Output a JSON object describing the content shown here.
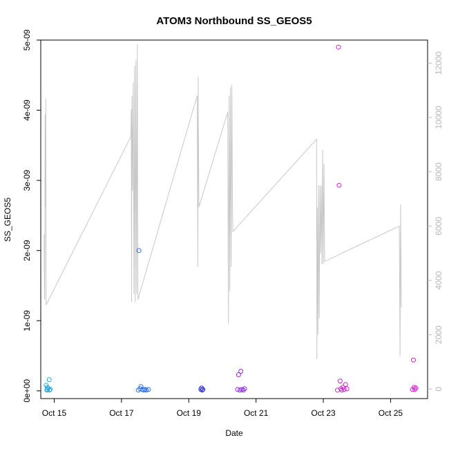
{
  "chart_data": {
    "type": "scatter",
    "title": "ATOM3 Northbound SS_GEOS5",
    "xlabel": "Date",
    "ylabel": "SS_GEOS5",
    "x_ticks": [
      "Oct 15",
      "Oct 17",
      "Oct 19",
      "Oct 21",
      "Oct 23",
      "Oct 25"
    ],
    "y_ticks": [
      "0e+00",
      "1e-09",
      "2e-09",
      "3e-09",
      "4e-09",
      "5e-09"
    ],
    "y2_ticks": [
      "0",
      "2000",
      "4000",
      "6000",
      "8000",
      "10000",
      "12000"
    ],
    "xlim": [
      14.6,
      26.1
    ],
    "ylim": [
      -1.1e-10,
      5e-09
    ],
    "y2lim": [
      -350,
      12850
    ],
    "grid": false,
    "points": [
      {
        "x": 14.76,
        "y": 8e-11,
        "color": "#29a8e0"
      },
      {
        "x": 14.79,
        "y": 5e-11,
        "color": "#29a8e0"
      },
      {
        "x": 14.8,
        "y": 2e-11,
        "color": "#29a8e0"
      },
      {
        "x": 14.82,
        "y": 4e-11,
        "color": "#29a8e0"
      },
      {
        "x": 14.85,
        "y": 1.6e-10,
        "color": "#29a8e0"
      },
      {
        "x": 14.86,
        "y": 1e-11,
        "color": "#29a8e0"
      },
      {
        "x": 14.88,
        "y": 2e-11,
        "color": "#29a8e0"
      },
      {
        "x": 14.78,
        "y": 1e-11,
        "color": "#29a8e0"
      },
      {
        "x": 17.5,
        "y": 1e-11,
        "color": "#2a6cf0"
      },
      {
        "x": 17.52,
        "y": 2e-09,
        "color": "#2a6cf0"
      },
      {
        "x": 17.55,
        "y": 3e-11,
        "color": "#2a6cf0"
      },
      {
        "x": 17.58,
        "y": 6e-11,
        "color": "#2a6cf0"
      },
      {
        "x": 17.62,
        "y": 2e-11,
        "color": "#2a6cf0"
      },
      {
        "x": 17.66,
        "y": 1e-11,
        "color": "#2a6cf0"
      },
      {
        "x": 17.7,
        "y": 2e-11,
        "color": "#2a6cf0"
      },
      {
        "x": 17.74,
        "y": 1e-11,
        "color": "#2a6cf0"
      },
      {
        "x": 17.8,
        "y": 2e-11,
        "color": "#2a6cf0"
      },
      {
        "x": 19.36,
        "y": 2e-11,
        "color": "#3030e0"
      },
      {
        "x": 19.38,
        "y": 4e-11,
        "color": "#3030e0"
      },
      {
        "x": 19.4,
        "y": 1e-11,
        "color": "#3030e0"
      },
      {
        "x": 19.42,
        "y": 2e-11,
        "color": "#3030e0"
      },
      {
        "x": 20.45,
        "y": 2e-11,
        "color": "#8a2be2"
      },
      {
        "x": 20.48,
        "y": 2.3e-10,
        "color": "#a020f0"
      },
      {
        "x": 20.52,
        "y": 1e-11,
        "color": "#8a2be2"
      },
      {
        "x": 20.55,
        "y": 2.8e-10,
        "color": "#a020f0"
      },
      {
        "x": 20.58,
        "y": 2e-11,
        "color": "#8a2be2"
      },
      {
        "x": 20.62,
        "y": 1e-11,
        "color": "#8a2be2"
      },
      {
        "x": 20.66,
        "y": 3e-11,
        "color": "#8a2be2"
      },
      {
        "x": 23.42,
        "y": 1e-11,
        "color": "#d020d0"
      },
      {
        "x": 23.45,
        "y": 4.9e-09,
        "color": "#d020d0"
      },
      {
        "x": 23.47,
        "y": 2.93e-09,
        "color": "#d020d0"
      },
      {
        "x": 23.5,
        "y": 1.4e-10,
        "color": "#d020d0"
      },
      {
        "x": 23.52,
        "y": 3e-11,
        "color": "#d020d0"
      },
      {
        "x": 23.55,
        "y": 1e-11,
        "color": "#d020d0"
      },
      {
        "x": 23.58,
        "y": 5e-11,
        "color": "#d020d0"
      },
      {
        "x": 23.62,
        "y": 2e-11,
        "color": "#d020d0"
      },
      {
        "x": 23.66,
        "y": 9e-11,
        "color": "#d020d0"
      },
      {
        "x": 23.7,
        "y": 3e-11,
        "color": "#d020d0"
      },
      {
        "x": 25.65,
        "y": 2e-11,
        "color": "#d020d0"
      },
      {
        "x": 25.68,
        "y": 4.4e-10,
        "color": "#d020d0"
      },
      {
        "x": 25.7,
        "y": 5e-11,
        "color": "#d020d0"
      },
      {
        "x": 25.72,
        "y": 2e-11,
        "color": "#d020d0"
      },
      {
        "x": 25.75,
        "y": 4e-11,
        "color": "#d020d0"
      }
    ],
    "altitude_series": {
      "axis": "right",
      "color": "#c8c8c8",
      "points": [
        [
          14.7,
          5700
        ],
        [
          14.71,
          3400
        ],
        [
          14.72,
          3300
        ],
        [
          14.73,
          10100
        ],
        [
          14.74,
          6700
        ],
        [
          14.75,
          10700
        ],
        [
          14.76,
          3100
        ],
        [
          17.28,
          9300
        ],
        [
          17.29,
          10300
        ],
        [
          17.3,
          3200
        ],
        [
          17.31,
          10800
        ],
        [
          17.33,
          7300
        ],
        [
          17.35,
          11300
        ],
        [
          17.37,
          3500
        ],
        [
          17.39,
          11900
        ],
        [
          17.41,
          3200
        ],
        [
          17.43,
          12100
        ],
        [
          17.45,
          3500
        ],
        [
          17.47,
          12700
        ],
        [
          17.49,
          3300
        ],
        [
          19.25,
          10800
        ],
        [
          19.27,
          4500
        ],
        [
          19.28,
          11500
        ],
        [
          19.3,
          6700
        ],
        [
          20.16,
          10200
        ],
        [
          20.18,
          2400
        ],
        [
          20.2,
          10800
        ],
        [
          20.22,
          3600
        ],
        [
          20.24,
          11100
        ],
        [
          20.26,
          4500
        ],
        [
          20.28,
          11200
        ],
        [
          20.3,
          6700
        ],
        [
          20.31,
          5800
        ],
        [
          22.8,
          9200
        ],
        [
          22.81,
          1100
        ],
        [
          22.82,
          6700
        ],
        [
          22.84,
          2000
        ],
        [
          22.86,
          7500
        ],
        [
          22.88,
          2600
        ],
        [
          22.9,
          7500
        ],
        [
          22.92,
          5000
        ],
        [
          22.94,
          7500
        ],
        [
          22.96,
          4600
        ],
        [
          22.98,
          8800
        ],
        [
          23.0,
          4600
        ],
        [
          23.02,
          8300
        ],
        [
          23.04,
          4700
        ],
        [
          25.26,
          6000
        ],
        [
          25.28,
          1200
        ],
        [
          25.3,
          6800
        ],
        [
          25.32,
          3000
        ]
      ]
    }
  }
}
